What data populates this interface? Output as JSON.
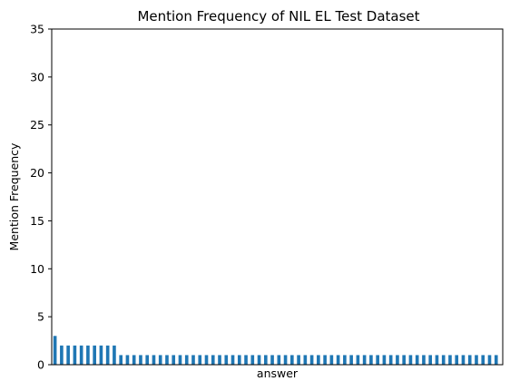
{
  "chart_data": {
    "type": "bar",
    "title": "Mention Frequency of NIL EL Test Dataset",
    "xlabel": "answer",
    "ylabel": "Mention Frequency",
    "ylim": [
      0,
      35
    ],
    "yticks": [
      "0",
      "5",
      "10",
      "15",
      "20",
      "25",
      "30",
      "35"
    ],
    "x_tick_labels_visible": false,
    "grid": false,
    "legend": "none",
    "bar_color": "#1f77b4",
    "values": [
      3,
      2,
      2,
      2,
      2,
      2,
      2,
      2,
      2,
      2,
      1,
      1,
      1,
      1,
      1,
      1,
      1,
      1,
      1,
      1,
      1,
      1,
      1,
      1,
      1,
      1,
      1,
      1,
      1,
      1,
      1,
      1,
      1,
      1,
      1,
      1,
      1,
      1,
      1,
      1,
      1,
      1,
      1,
      1,
      1,
      1,
      1,
      1,
      1,
      1,
      1,
      1,
      1,
      1,
      1,
      1,
      1,
      1,
      1,
      1,
      1,
      1,
      1,
      1,
      1,
      1,
      1,
      1
    ]
  }
}
